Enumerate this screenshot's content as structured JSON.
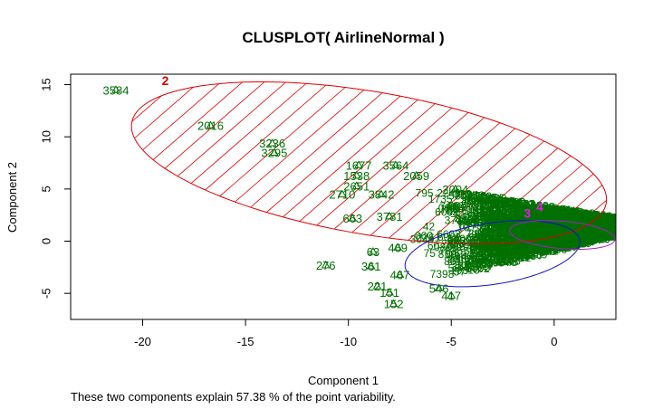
{
  "chart_data": {
    "type": "scatter",
    "title": "CLUSPLOT( AirlineNormal )",
    "xlabel": "Component 1",
    "ylabel": "Component 2",
    "xlim": [
      -23.5,
      3
    ],
    "ylim": [
      -7.5,
      16
    ],
    "xticks": [
      -20,
      -15,
      -10,
      -5,
      0
    ],
    "yticks": [
      -5,
      0,
      5,
      10,
      15
    ],
    "grid": false,
    "legend": "none",
    "clusters": [
      {
        "label": "2",
        "color": "#e00000",
        "center": [
          -18.9,
          15.4
        ]
      },
      {
        "label": "3",
        "color": "#e020e0",
        "center": [
          -1.3,
          2.7
        ]
      },
      {
        "label": "4",
        "color": "#e020e0",
        "center": [
          -0.7,
          3.3
        ]
      }
    ],
    "ellipses": [
      {
        "center": [
          -9,
          7.5
        ],
        "semi_axes": [
          12.3,
          6.5
        ],
        "angle_deg": -24,
        "color": "#e00000",
        "hatched": true
      },
      {
        "center": [
          -3,
          -1.2
        ],
        "semi_axes": [
          4.5,
          2.8
        ],
        "angle_deg": 25,
        "color": "#1010d0",
        "hatched": false
      },
      {
        "center": [
          0.4,
          0.6
        ],
        "semi_axes": [
          2.6,
          1.3
        ],
        "angle_deg": -12,
        "color": "#a020c0",
        "hatched": false
      }
    ],
    "labeled_points": [
      {
        "label": "3584",
        "x": -21.3,
        "y": 14.5
      },
      {
        "label": "2016",
        "x": -16.7,
        "y": 11.1
      },
      {
        "label": "3236",
        "x": -13.7,
        "y": 9.4
      },
      {
        "label": "3295",
        "x": -13.6,
        "y": 8.5
      },
      {
        "label": "1677",
        "x": -9.5,
        "y": 7.3
      },
      {
        "label": "3564",
        "x": -7.7,
        "y": 7.3
      },
      {
        "label": "1538",
        "x": -9.6,
        "y": 6.3
      },
      {
        "label": "2059",
        "x": -6.7,
        "y": 6.3
      },
      {
        "label": "2651",
        "x": -9.6,
        "y": 5.3
      },
      {
        "label": "2004",
        "x": -4.8,
        "y": 5.0
      },
      {
        "label": "2710",
        "x": -10.3,
        "y": 4.5
      },
      {
        "label": "3842",
        "x": -8.4,
        "y": 4.5
      },
      {
        "label": "1235",
        "x": -3.4,
        "y": 4.2
      },
      {
        "label": "663",
        "x": -9.8,
        "y": 2.2
      },
      {
        "label": "3781",
        "x": -8.0,
        "y": 2.4
      },
      {
        "label": "63",
        "x": -8.8,
        "y": -1.0
      },
      {
        "label": "469",
        "x": -7.6,
        "y": -0.6
      },
      {
        "label": "276",
        "x": -11.1,
        "y": -2.3
      },
      {
        "label": "361",
        "x": -8.9,
        "y": -2.4
      },
      {
        "label": "467",
        "x": -7.5,
        "y": -3.2
      },
      {
        "label": "221",
        "x": -8.6,
        "y": -4.3
      },
      {
        "label": "151",
        "x": -8.0,
        "y": -4.9
      },
      {
        "label": "152",
        "x": -7.8,
        "y": -6.0
      },
      {
        "label": "546",
        "x": -5.6,
        "y": -4.5
      },
      {
        "label": "417",
        "x": -5.0,
        "y": -5.2
      }
    ],
    "point_color": "#007000",
    "point_cloud_region": {
      "x": [
        -6.5,
        2.7
      ],
      "y": [
        -5.5,
        4.5
      ]
    }
  },
  "footer": {
    "caption": "These two components explain 57.38 % of the point variability."
  }
}
